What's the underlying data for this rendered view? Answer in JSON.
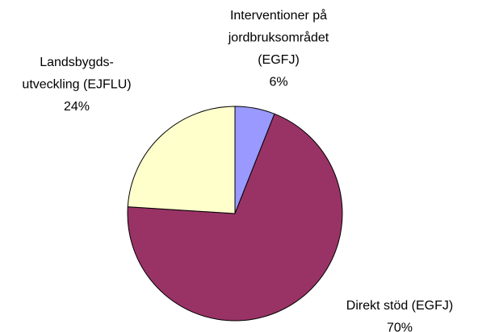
{
  "chart_data": {
    "type": "pie",
    "categories": [
      [
        "Interventioner på",
        "jordbruksområdet",
        "(EGFJ)"
      ],
      [
        "Direkt stöd (EGFJ)"
      ],
      [
        "Landsbygds-",
        "utveckling (EJFLU)"
      ]
    ],
    "values": [
      6,
      70,
      24
    ],
    "value_labels": [
      "6%",
      "70%",
      "24%"
    ],
    "colors": [
      "#9999ff",
      "#993366",
      "#ffffcc"
    ]
  }
}
